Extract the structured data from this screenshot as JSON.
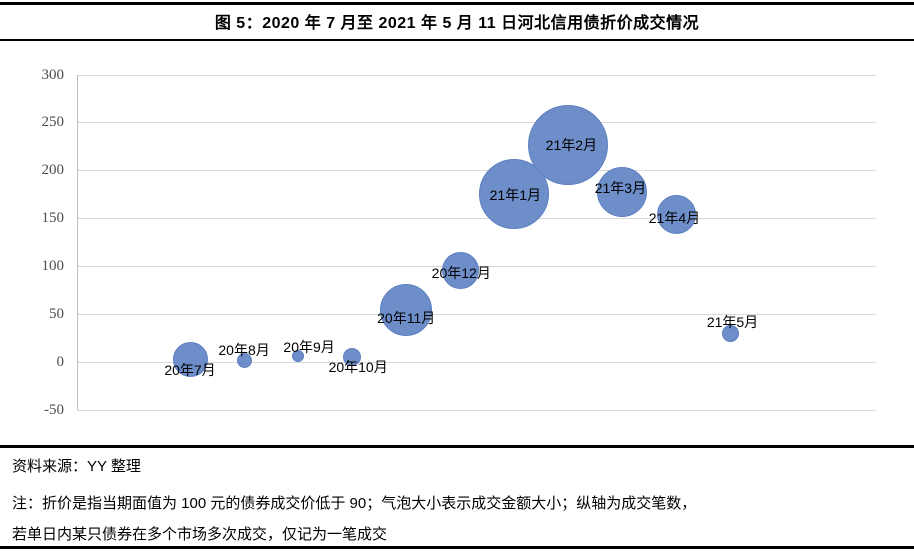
{
  "header": {
    "title": "图 5：2020 年 7 月至 2021 年 5 月 11 日河北信用债折价成交情况"
  },
  "footer": {
    "source": "资料来源：YY 整理",
    "note_line1": "注：折价是指当期面值为 100 元的债券成交价低于 90；气泡大小表示成交金额大小；纵轴为成交笔数，",
    "note_line2": "若单日内某只债券在多个市场多次成交，仅记为一笔成交"
  },
  "colors": {
    "bubble_fill": "#6D8EC9",
    "bubble_edge": "#5B7EC0",
    "gridline": "#D9D9D9",
    "axis_line": "#BFBFBF",
    "tick_label": "#4D4D4D",
    "rule": "#000000"
  },
  "chart_data": {
    "type": "scatter",
    "variant": "bubble",
    "title": "2020年7月至2021年5月11日河北信用债折价成交情况",
    "y_meaning": "成交笔数",
    "bubble_size_meaning": "成交金额大小",
    "ylim": [
      -50,
      300
    ],
    "yticks": [
      300,
      250,
      200,
      150,
      100,
      50,
      0,
      -50
    ],
    "grid": true,
    "legend": "none",
    "points": [
      {
        "month": "20年7月",
        "count": 3,
        "radius_px": 17.5,
        "label_offset": [
          0,
          11
        ]
      },
      {
        "month": "20年8月",
        "count": 2,
        "radius_px": 7.5,
        "label_offset": [
          0,
          -10
        ]
      },
      {
        "month": "20年9月",
        "count": 6,
        "radius_px": 6,
        "label_offset": [
          11,
          -9
        ]
      },
      {
        "month": "20年10月",
        "count": 5,
        "radius_px": 9,
        "label_offset": [
          6,
          10
        ]
      },
      {
        "month": "20年11月",
        "count": 55,
        "radius_px": 26,
        "label_offset": [
          0,
          8
        ]
      },
      {
        "month": "20年12月",
        "count": 96,
        "radius_px": 18.5,
        "label_offset": [
          1,
          3
        ]
      },
      {
        "month": "21年1月",
        "count": 176,
        "radius_px": 35,
        "label_offset": [
          1,
          1
        ]
      },
      {
        "month": "21年2月",
        "count": 227,
        "radius_px": 40,
        "label_offset": [
          3,
          0
        ]
      },
      {
        "month": "21年3月",
        "count": 178,
        "radius_px": 25,
        "label_offset": [
          -2,
          -4
        ]
      },
      {
        "month": "21年4月",
        "count": 154,
        "radius_px": 19.5,
        "label_offset": [
          -2,
          3
        ]
      },
      {
        "month": "21年5月",
        "count": 30,
        "radius_px": 8.5,
        "label_offset": [
          2,
          -11
        ]
      }
    ]
  }
}
